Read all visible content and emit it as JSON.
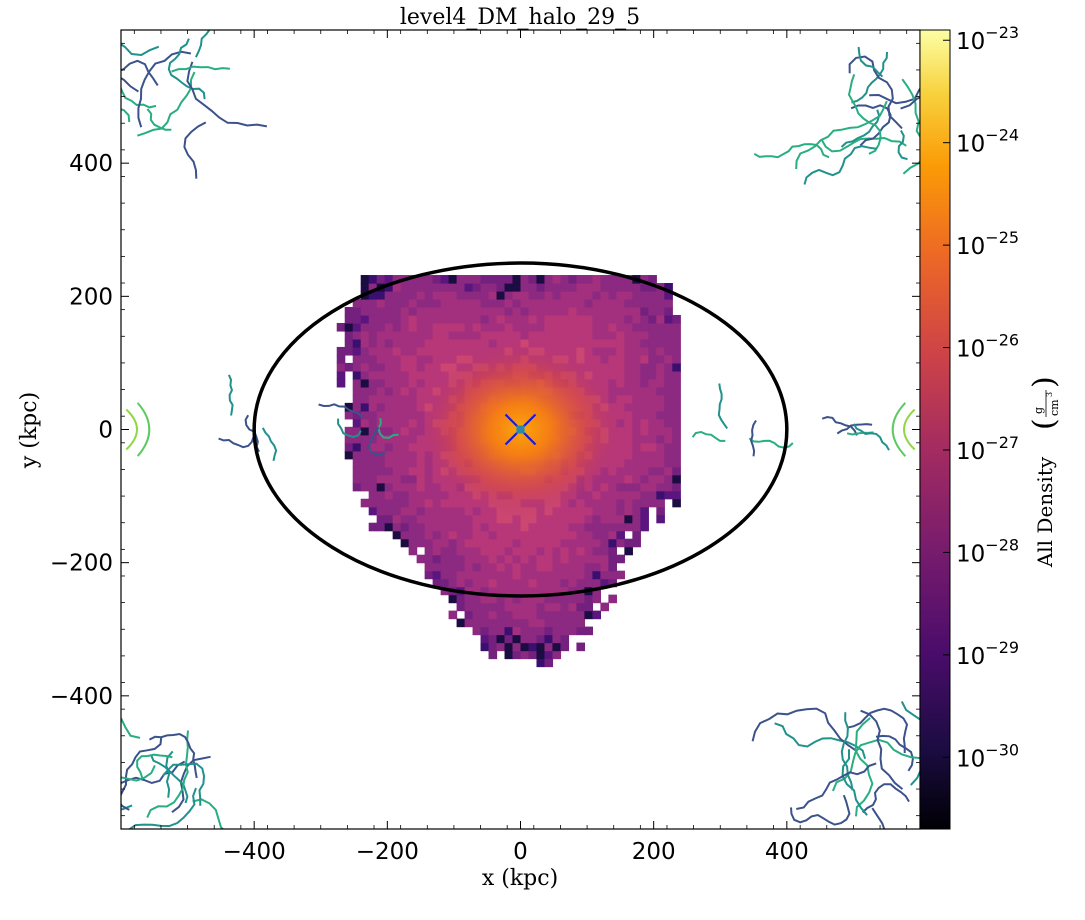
{
  "chart_data": {
    "type": "heatmap",
    "title": "level4_DM_halo_29_5",
    "xlabel": "x  (kpc)",
    "ylabel": "y  (kpc)",
    "xlim": [
      -600,
      600
    ],
    "ylim": [
      -600,
      600
    ],
    "xticks": [
      -400,
      -200,
      0,
      200,
      400
    ],
    "yticks": [
      400,
      200,
      0,
      -200,
      -400
    ],
    "xtick_labels": [
      "−400",
      "−200",
      "0",
      "200",
      "400"
    ],
    "ytick_labels": [
      "400",
      "200",
      "0",
      "−200",
      "−400"
    ],
    "colormap": "inferno",
    "colorbar": {
      "label": "All Density",
      "unit_numerator": "g",
      "unit_denominator": "cm",
      "unit_exponent": "3",
      "scale": "log",
      "range_exponents": [
        -30.7,
        -22.9
      ],
      "tick_exponents": [
        -23,
        -24,
        -25,
        -26,
        -27,
        -28,
        -29,
        -30
      ],
      "tick_base": "10",
      "tick_exp_labels": [
        "−23",
        "−24",
        "−25",
        "−26",
        "−27",
        "−28",
        "−29",
        "−30"
      ]
    },
    "ellipse": {
      "center": [
        0,
        0
      ],
      "semi_axis_x": 400,
      "semi_axis_y": 250,
      "color": "#000000"
    },
    "marker": {
      "x": 0,
      "y": 0,
      "symbol": "x",
      "color": "#1a1ad8",
      "center_color": "#2a8aaa"
    },
    "blob_center": [
      0,
      0
    ],
    "blob_extent_x": [
      -300,
      240
    ],
    "blob_extent_y": [
      -380,
      230
    ],
    "contour_colors": [
      "#3b528b",
      "#21918c",
      "#28ae80",
      "#5ec962",
      "#8fd744"
    ],
    "grid": false,
    "legend": "none"
  }
}
